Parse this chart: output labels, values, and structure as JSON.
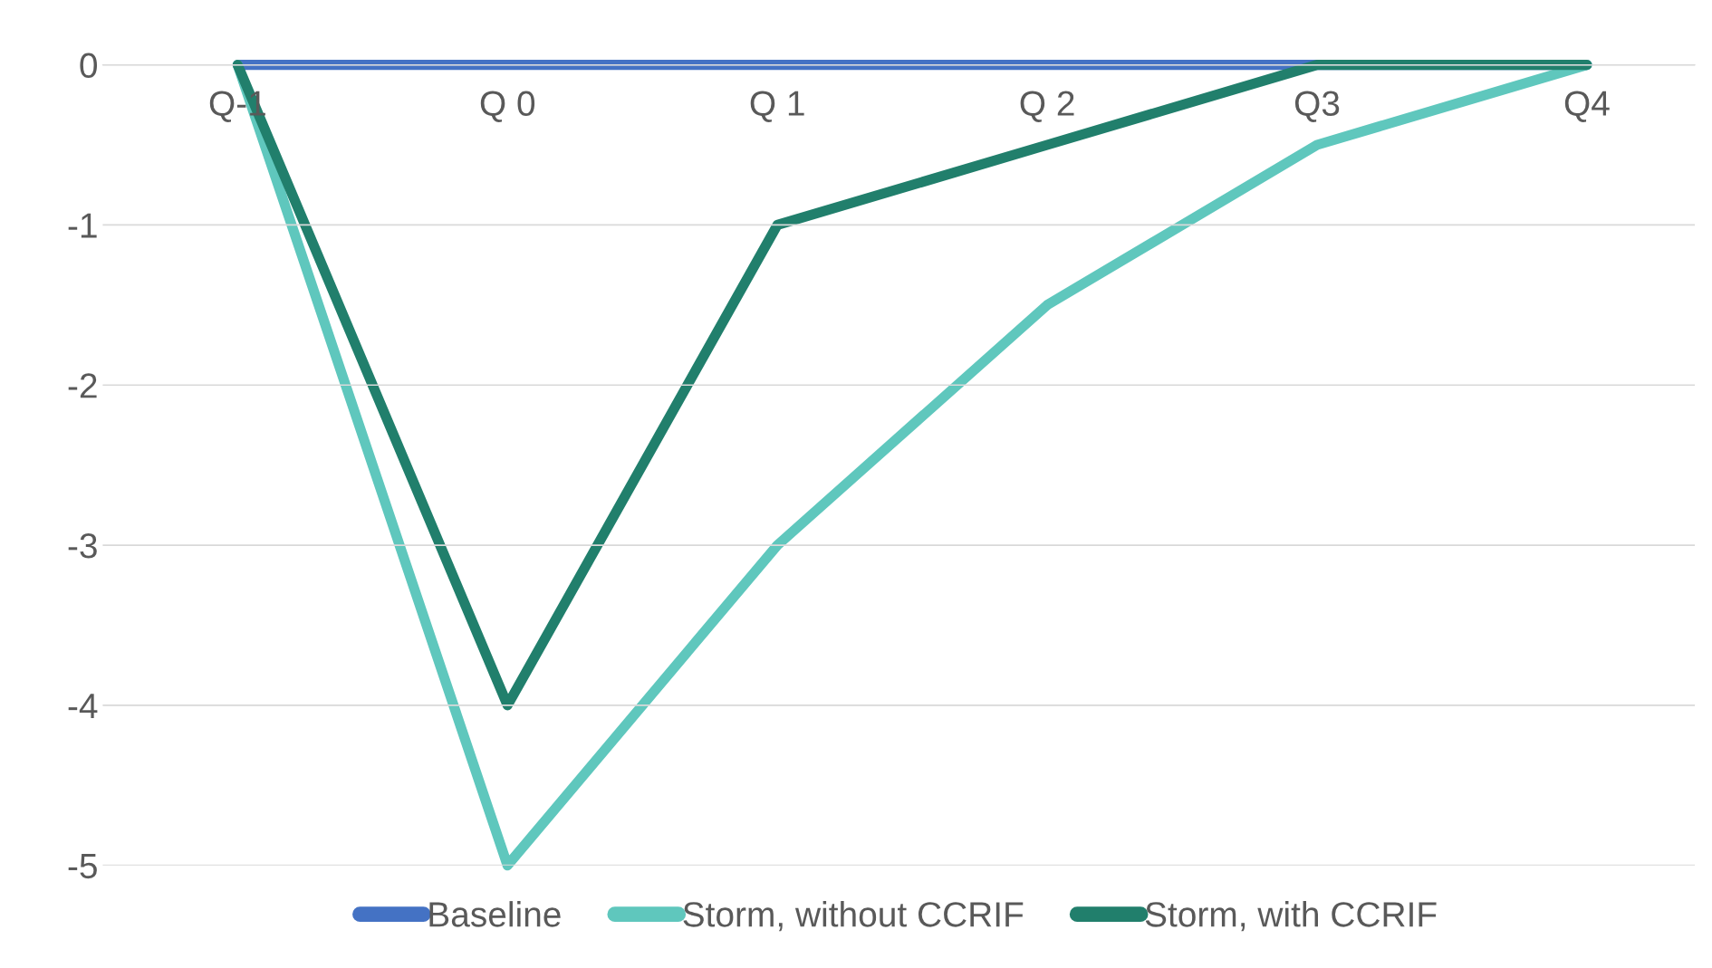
{
  "chart_data": {
    "type": "line",
    "categories": [
      "Q-1",
      "Q 0",
      "Q 1",
      "Q 2",
      "Q3",
      "Q4"
    ],
    "series": [
      {
        "name": "Baseline",
        "color": "#4472c4",
        "values": [
          0,
          0,
          0,
          0,
          0,
          0
        ]
      },
      {
        "name": "Storm, without CCRIF",
        "color": "#5fc7bd",
        "values": [
          0,
          -5,
          -3,
          -1.5,
          -0.5,
          0
        ]
      },
      {
        "name": "Storm, with CCRIF",
        "color": "#217f6c",
        "values": [
          0,
          -4,
          -1,
          -0.5,
          0,
          0
        ]
      }
    ],
    "ylim": [
      -5,
      0
    ],
    "yticks": [
      0,
      -1,
      -2,
      -3,
      -4,
      -5
    ],
    "grid": "y",
    "legend": "bottom",
    "line_style": "solid"
  }
}
